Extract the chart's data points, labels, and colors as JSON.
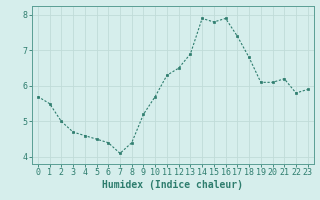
{
  "x": [
    0,
    1,
    2,
    3,
    4,
    5,
    6,
    7,
    8,
    9,
    10,
    11,
    12,
    13,
    14,
    15,
    16,
    17,
    18,
    19,
    20,
    21,
    22,
    23
  ],
  "y": [
    5.7,
    5.5,
    5.0,
    4.7,
    4.6,
    4.5,
    4.4,
    4.1,
    4.4,
    5.2,
    5.7,
    6.3,
    6.5,
    6.9,
    7.9,
    7.8,
    7.9,
    7.4,
    6.8,
    6.1,
    6.1,
    6.2,
    5.8,
    5.9
  ],
  "line_color": "#2e7d6e",
  "marker_color": "#2e7d6e",
  "bg_color": "#d6eeec",
  "grid_color": "#c0dbd8",
  "axis_color": "#5a9e94",
  "xlabel": "Humidex (Indice chaleur)",
  "xlabel_color": "#2e7d6e",
  "xlim": [
    -0.5,
    23.5
  ],
  "ylim": [
    3.8,
    8.25
  ],
  "yticks": [
    4,
    5,
    6,
    7,
    8
  ],
  "xticks": [
    0,
    1,
    2,
    3,
    4,
    5,
    6,
    7,
    8,
    9,
    10,
    11,
    12,
    13,
    14,
    15,
    16,
    17,
    18,
    19,
    20,
    21,
    22,
    23
  ],
  "tick_color": "#2e7d6e",
  "font_size_xlabel": 7.0,
  "font_size_ticks": 6.0
}
